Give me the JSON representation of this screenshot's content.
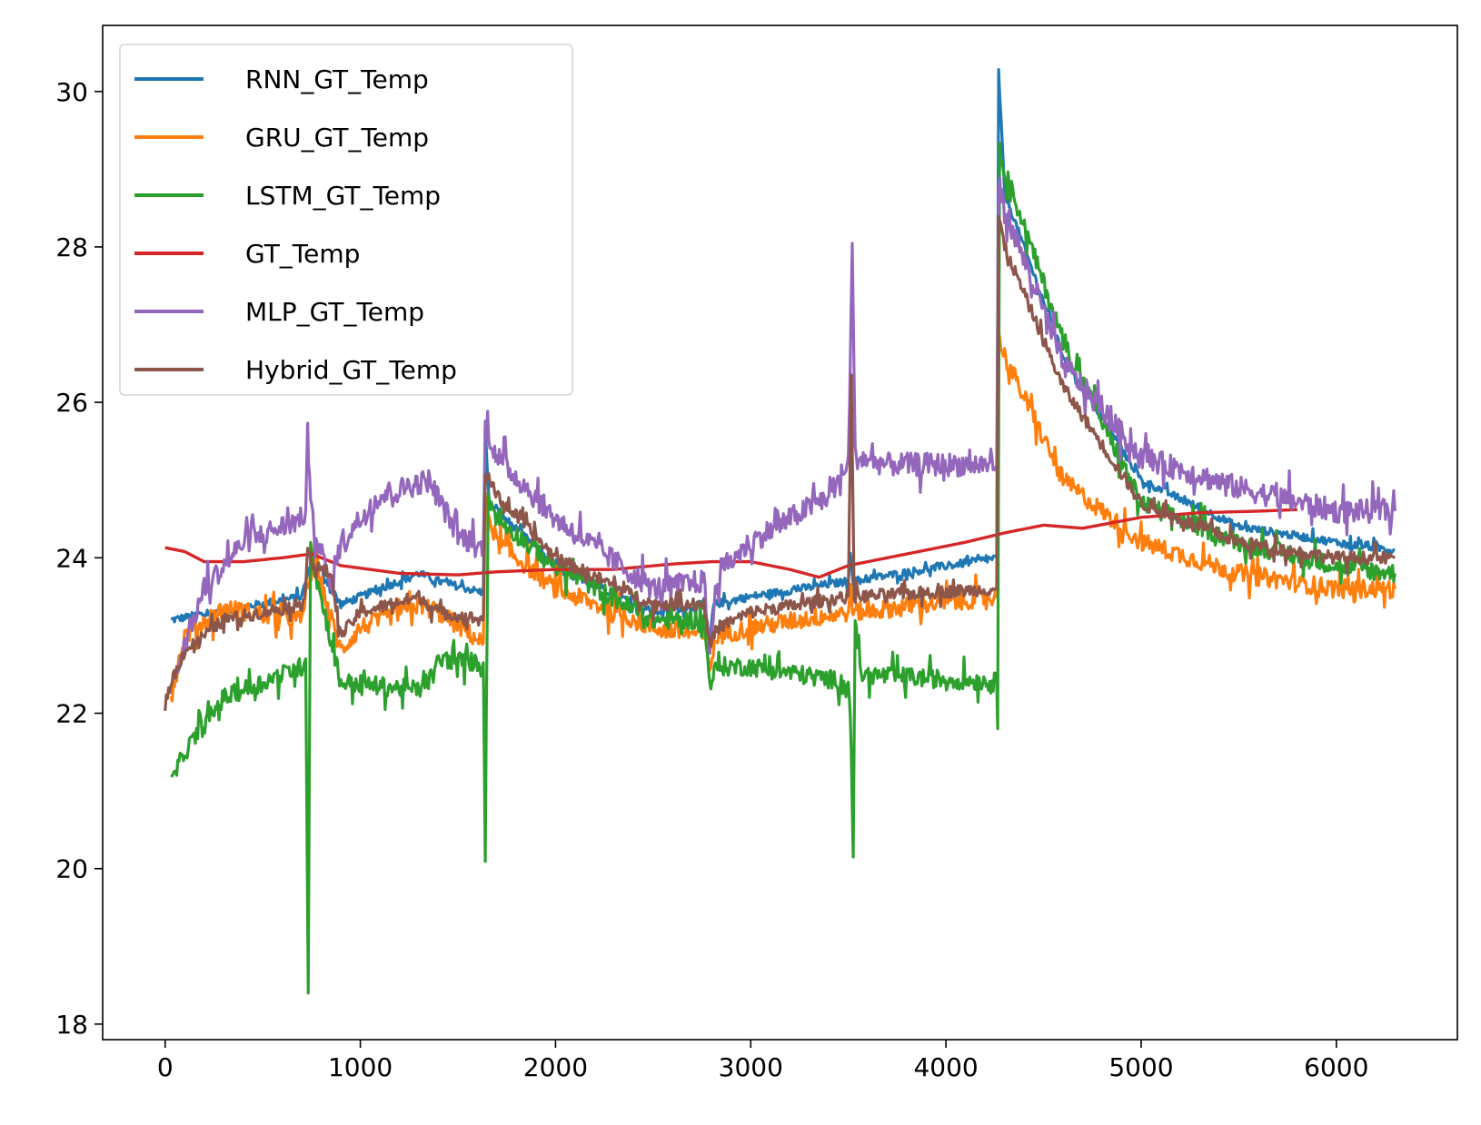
{
  "chart_data": {
    "type": "line",
    "title": "",
    "xlabel": "",
    "ylabel": "",
    "xlim": [
      -320,
      6620
    ],
    "ylim": [
      17.8,
      30.85
    ],
    "xticks": [
      0,
      1000,
      2000,
      3000,
      4000,
      5000,
      6000
    ],
    "yticks": [
      18,
      20,
      22,
      24,
      26,
      28,
      30
    ],
    "xtick_labels": [
      "0",
      "1000",
      "2000",
      "3000",
      "4000",
      "5000",
      "6000"
    ],
    "ytick_labels": [
      "18",
      "20",
      "22",
      "24",
      "26",
      "28",
      "30"
    ],
    "grid": false,
    "legend_position": "upper-left",
    "series": [
      {
        "name": "RNN_GT_Temp",
        "color": "#1f77b4",
        "noise": 0.05,
        "points": [
          [
            30,
            23.2
          ],
          [
            700,
            23.5
          ],
          [
            720,
            23.7
          ],
          [
            760,
            24.0
          ],
          [
            900,
            23.4
          ],
          [
            1300,
            23.8
          ],
          [
            1400,
            23.7
          ],
          [
            1630,
            23.55
          ],
          [
            1640,
            25.7
          ],
          [
            1660,
            24.7
          ],
          [
            2000,
            23.9
          ],
          [
            2500,
            23.3
          ],
          [
            2760,
            23.4
          ],
          [
            2790,
            22.9
          ],
          [
            2810,
            23.4
          ],
          [
            3000,
            23.5
          ],
          [
            3500,
            23.7
          ],
          [
            3510,
            24.1
          ],
          [
            3525,
            23.7
          ],
          [
            4260,
            24.0
          ],
          [
            4270,
            30.25
          ],
          [
            4300,
            28.7
          ],
          [
            4600,
            26.6
          ],
          [
            5000,
            25.0
          ],
          [
            5500,
            24.4
          ],
          [
            6000,
            24.2
          ],
          [
            6300,
            24.1
          ]
        ]
      },
      {
        "name": "GRU_GT_Temp",
        "color": "#ff7f0e",
        "noise": 0.12,
        "points": [
          [
            30,
            22.2
          ],
          [
            100,
            23.0
          ],
          [
            300,
            23.35
          ],
          [
            700,
            23.2
          ],
          [
            720,
            23.5
          ],
          [
            760,
            24.0
          ],
          [
            900,
            22.8
          ],
          [
            1000,
            23.1
          ],
          [
            1300,
            23.4
          ],
          [
            1400,
            23.3
          ],
          [
            1630,
            22.9
          ],
          [
            1640,
            24.7
          ],
          [
            1700,
            24.2
          ],
          [
            2000,
            23.6
          ],
          [
            2500,
            23.1
          ],
          [
            2760,
            23.0
          ],
          [
            2790,
            22.6
          ],
          [
            2830,
            23.0
          ],
          [
            3000,
            23.1
          ],
          [
            3500,
            23.3
          ],
          [
            3510,
            23.6
          ],
          [
            3525,
            23.3
          ],
          [
            4260,
            23.5
          ],
          [
            4270,
            26.9
          ],
          [
            4300,
            26.6
          ],
          [
            4600,
            25.0
          ],
          [
            5000,
            24.2
          ],
          [
            5500,
            23.8
          ],
          [
            6000,
            23.6
          ],
          [
            6300,
            23.6
          ]
        ]
      },
      {
        "name": "LSTM_GT_Temp",
        "color": "#2ca02c",
        "noise": 0.12,
        "points": [
          [
            30,
            21.1
          ],
          [
            100,
            21.5
          ],
          [
            300,
            22.2
          ],
          [
            700,
            22.6
          ],
          [
            720,
            22.7
          ],
          [
            733,
            18.4
          ],
          [
            745,
            24.3
          ],
          [
            760,
            23.9
          ],
          [
            900,
            22.4
          ],
          [
            1300,
            22.3
          ],
          [
            1380,
            22.5
          ],
          [
            1400,
            22.7
          ],
          [
            1630,
            22.65
          ],
          [
            1640,
            20.2
          ],
          [
            1655,
            24.8
          ],
          [
            1700,
            24.5
          ],
          [
            2000,
            23.9
          ],
          [
            2500,
            23.2
          ],
          [
            2760,
            23.2
          ],
          [
            2790,
            22.4
          ],
          [
            2830,
            22.6
          ],
          [
            3000,
            22.6
          ],
          [
            3500,
            22.4
          ],
          [
            3510,
            22.0
          ],
          [
            3525,
            20.15
          ],
          [
            3535,
            23.3
          ],
          [
            3560,
            22.5
          ],
          [
            4260,
            22.4
          ],
          [
            4265,
            21.8
          ],
          [
            4275,
            29.3
          ],
          [
            4300,
            29.0
          ],
          [
            4600,
            26.8
          ],
          [
            5000,
            24.7
          ],
          [
            5500,
            24.2
          ],
          [
            6000,
            23.9
          ],
          [
            6300,
            23.8
          ]
        ]
      },
      {
        "name": "GT_Temp",
        "color": "#d62728",
        "noise": 0,
        "points": [
          [
            0,
            24.13
          ],
          [
            100,
            24.08
          ],
          [
            200,
            23.95
          ],
          [
            400,
            23.95
          ],
          [
            600,
            24.0
          ],
          [
            750,
            24.05
          ],
          [
            900,
            23.9
          ],
          [
            1200,
            23.8
          ],
          [
            1500,
            23.78
          ],
          [
            1700,
            23.82
          ],
          [
            2000,
            23.85
          ],
          [
            2300,
            23.85
          ],
          [
            2600,
            23.92
          ],
          [
            2800,
            23.95
          ],
          [
            3000,
            23.95
          ],
          [
            3200,
            23.85
          ],
          [
            3350,
            23.75
          ],
          [
            3500,
            23.9
          ],
          [
            3800,
            24.05
          ],
          [
            4100,
            24.2
          ],
          [
            4300,
            24.32
          ],
          [
            4500,
            24.42
          ],
          [
            4700,
            24.38
          ],
          [
            5000,
            24.52
          ],
          [
            5300,
            24.58
          ],
          [
            5600,
            24.6
          ],
          [
            5800,
            24.62
          ]
        ]
      },
      {
        "name": "MLP_GT_Temp",
        "color": "#9467bd",
        "noise": 0.15,
        "points": [
          [
            60,
            22.6
          ],
          [
            200,
            23.6
          ],
          [
            400,
            24.2
          ],
          [
            700,
            24.5
          ],
          [
            720,
            24.6
          ],
          [
            730,
            25.7
          ],
          [
            745,
            24.6
          ],
          [
            850,
            23.6
          ],
          [
            900,
            24.2
          ],
          [
            1100,
            24.8
          ],
          [
            1350,
            25.0
          ],
          [
            1500,
            24.3
          ],
          [
            1630,
            24.1
          ],
          [
            1640,
            25.7
          ],
          [
            1700,
            25.3
          ],
          [
            2000,
            24.5
          ],
          [
            2500,
            23.6
          ],
          [
            2760,
            23.7
          ],
          [
            2790,
            22.8
          ],
          [
            2830,
            23.8
          ],
          [
            3000,
            24.2
          ],
          [
            3400,
            24.8
          ],
          [
            3500,
            25.2
          ],
          [
            3520,
            28.0
          ],
          [
            3535,
            25.3
          ],
          [
            3700,
            25.2
          ],
          [
            4260,
            25.2
          ],
          [
            4270,
            28.8
          ],
          [
            4300,
            28.5
          ],
          [
            4600,
            26.5
          ],
          [
            5000,
            25.3
          ],
          [
            5500,
            24.9
          ],
          [
            6000,
            24.6
          ],
          [
            6300,
            24.6
          ]
        ]
      },
      {
        "name": "Hybrid_GT_Temp",
        "color": "#8c564b",
        "noise": 0.08,
        "points": [
          [
            0,
            22.1
          ],
          [
            30,
            22.4
          ],
          [
            100,
            22.8
          ],
          [
            300,
            23.2
          ],
          [
            700,
            23.4
          ],
          [
            720,
            23.6
          ],
          [
            730,
            24.2
          ],
          [
            750,
            23.9
          ],
          [
            850,
            23.8
          ],
          [
            900,
            23.0
          ],
          [
            1000,
            23.3
          ],
          [
            1300,
            23.5
          ],
          [
            1400,
            23.3
          ],
          [
            1630,
            23.2
          ],
          [
            1640,
            25.1
          ],
          [
            1700,
            24.8
          ],
          [
            2000,
            24.0
          ],
          [
            2500,
            23.4
          ],
          [
            2760,
            23.4
          ],
          [
            2790,
            22.9
          ],
          [
            2830,
            23.1
          ],
          [
            3000,
            23.3
          ],
          [
            3500,
            23.5
          ],
          [
            3515,
            26.4
          ],
          [
            3530,
            23.5
          ],
          [
            4260,
            23.6
          ],
          [
            4270,
            28.4
          ],
          [
            4300,
            28.0
          ],
          [
            4600,
            26.2
          ],
          [
            5000,
            24.7
          ],
          [
            5500,
            24.2
          ],
          [
            6000,
            24.0
          ],
          [
            6300,
            24.0
          ]
        ]
      }
    ]
  }
}
